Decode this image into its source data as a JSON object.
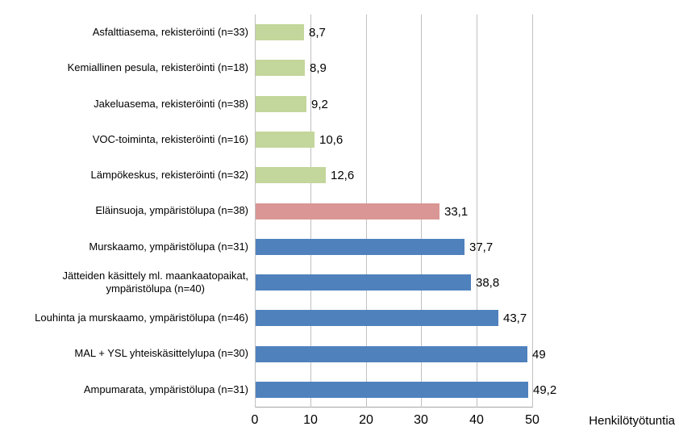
{
  "chart_data": {
    "type": "bar",
    "orientation": "horizontal",
    "title": "",
    "xlabel": "Henkilötyötuntia",
    "ylabel": "",
    "xlim": [
      0,
      50
    ],
    "x_ticks": [
      0,
      10,
      20,
      30,
      40,
      50
    ],
    "grid": true,
    "legend": false,
    "categories": [
      "Asfalttiasema, rekisteröinti (n=33)",
      "Kemiallinen pesula, rekisteröinti (n=18)",
      "Jakeluasema, rekisteröinti (n=38)",
      "VOC-toiminta, rekisteröinti (n=16)",
      "Lämpökeskus, rekisteröinti (n=32)",
      "Eläinsuoja, ympäristölupa (n=38)",
      "Murskaamo, ympäristölupa (n=31)",
      "Jätteiden käsittely ml. maankaatopaikat,\nympäristölupa (n=40)",
      "Louhinta ja murskaamo, ympäristölupa (n=46)",
      "MAL + YSL yhteiskäsittelylupa (n=30)",
      "Ampumarata, ympäristölupa (n=31)"
    ],
    "values": [
      8.7,
      8.9,
      9.2,
      10.6,
      12.6,
      33.1,
      37.7,
      38.8,
      43.7,
      49,
      49.2
    ],
    "value_labels": [
      "8,7",
      "8,9",
      "9,2",
      "10,6",
      "12,6",
      "33,1",
      "37,7",
      "38,8",
      "43,7",
      "49",
      "49,2"
    ],
    "bar_colors": [
      "#C3D69B",
      "#C3D69B",
      "#C3D69B",
      "#C3D69B",
      "#C3D69B",
      "#D99694",
      "#4F81BD",
      "#4F81BD",
      "#4F81BD",
      "#4F81BD",
      "#4F81BD"
    ],
    "colors": {
      "green_registration": "#C3D69B",
      "red_animal_shelter": "#D99694",
      "blue_environmental_permit": "#4F81BD",
      "gridline": "#C0C0C0",
      "axis_line": "#A6A6A6",
      "text": "#000000"
    }
  }
}
